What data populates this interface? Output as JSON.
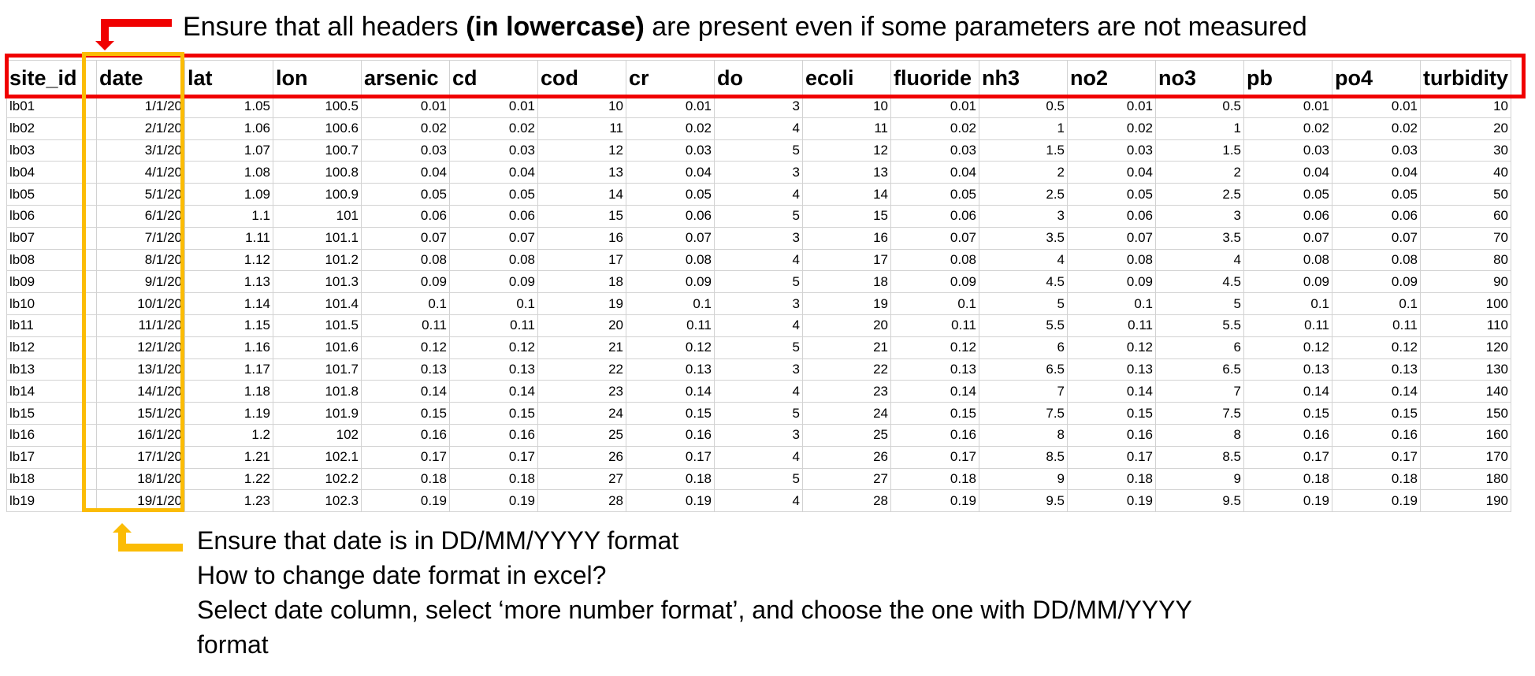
{
  "annotations": {
    "top_note_before": "Ensure that all headers ",
    "top_note_bold": "(in lowercase)",
    "top_note_after": " are present even if some parameters are not measured",
    "bottom_lines": [
      "Ensure that date is in DD/MM/YYYY format",
      "How to change date format in excel?",
      "Select date column, select ‘more number format’, and choose the one with DD/MM/YYYY",
      "format"
    ],
    "red_color": "#f00000",
    "yellow_color": "#fbbc05"
  },
  "table": {
    "headers": [
      "site_id",
      "date",
      "lat",
      "lon",
      "arsenic",
      "cd",
      "cod",
      "cr",
      "do",
      "ecoli",
      "fluoride",
      "nh3",
      "no2",
      "no3",
      "pb",
      "po4",
      "turbidity"
    ],
    "rows": [
      [
        "lb01",
        "1/1/20",
        "1.05",
        "100.5",
        "0.01",
        "0.01",
        "10",
        "0.01",
        "3",
        "10",
        "0.01",
        "0.5",
        "0.01",
        "0.5",
        "0.01",
        "0.01",
        "10"
      ],
      [
        "lb02",
        "2/1/20",
        "1.06",
        "100.6",
        "0.02",
        "0.02",
        "11",
        "0.02",
        "4",
        "11",
        "0.02",
        "1",
        "0.02",
        "1",
        "0.02",
        "0.02",
        "20"
      ],
      [
        "lb03",
        "3/1/20",
        "1.07",
        "100.7",
        "0.03",
        "0.03",
        "12",
        "0.03",
        "5",
        "12",
        "0.03",
        "1.5",
        "0.03",
        "1.5",
        "0.03",
        "0.03",
        "30"
      ],
      [
        "lb04",
        "4/1/20",
        "1.08",
        "100.8",
        "0.04",
        "0.04",
        "13",
        "0.04",
        "3",
        "13",
        "0.04",
        "2",
        "0.04",
        "2",
        "0.04",
        "0.04",
        "40"
      ],
      [
        "lb05",
        "5/1/20",
        "1.09",
        "100.9",
        "0.05",
        "0.05",
        "14",
        "0.05",
        "4",
        "14",
        "0.05",
        "2.5",
        "0.05",
        "2.5",
        "0.05",
        "0.05",
        "50"
      ],
      [
        "lb06",
        "6/1/20",
        "1.1",
        "101",
        "0.06",
        "0.06",
        "15",
        "0.06",
        "5",
        "15",
        "0.06",
        "3",
        "0.06",
        "3",
        "0.06",
        "0.06",
        "60"
      ],
      [
        "lb07",
        "7/1/20",
        "1.11",
        "101.1",
        "0.07",
        "0.07",
        "16",
        "0.07",
        "3",
        "16",
        "0.07",
        "3.5",
        "0.07",
        "3.5",
        "0.07",
        "0.07",
        "70"
      ],
      [
        "lb08",
        "8/1/20",
        "1.12",
        "101.2",
        "0.08",
        "0.08",
        "17",
        "0.08",
        "4",
        "17",
        "0.08",
        "4",
        "0.08",
        "4",
        "0.08",
        "0.08",
        "80"
      ],
      [
        "lb09",
        "9/1/20",
        "1.13",
        "101.3",
        "0.09",
        "0.09",
        "18",
        "0.09",
        "5",
        "18",
        "0.09",
        "4.5",
        "0.09",
        "4.5",
        "0.09",
        "0.09",
        "90"
      ],
      [
        "lb10",
        "10/1/20",
        "1.14",
        "101.4",
        "0.1",
        "0.1",
        "19",
        "0.1",
        "3",
        "19",
        "0.1",
        "5",
        "0.1",
        "5",
        "0.1",
        "0.1",
        "100"
      ],
      [
        "lb11",
        "11/1/20",
        "1.15",
        "101.5",
        "0.11",
        "0.11",
        "20",
        "0.11",
        "4",
        "20",
        "0.11",
        "5.5",
        "0.11",
        "5.5",
        "0.11",
        "0.11",
        "110"
      ],
      [
        "lb12",
        "12/1/20",
        "1.16",
        "101.6",
        "0.12",
        "0.12",
        "21",
        "0.12",
        "5",
        "21",
        "0.12",
        "6",
        "0.12",
        "6",
        "0.12",
        "0.12",
        "120"
      ],
      [
        "lb13",
        "13/1/20",
        "1.17",
        "101.7",
        "0.13",
        "0.13",
        "22",
        "0.13",
        "3",
        "22",
        "0.13",
        "6.5",
        "0.13",
        "6.5",
        "0.13",
        "0.13",
        "130"
      ],
      [
        "lb14",
        "14/1/20",
        "1.18",
        "101.8",
        "0.14",
        "0.14",
        "23",
        "0.14",
        "4",
        "23",
        "0.14",
        "7",
        "0.14",
        "7",
        "0.14",
        "0.14",
        "140"
      ],
      [
        "lb15",
        "15/1/20",
        "1.19",
        "101.9",
        "0.15",
        "0.15",
        "24",
        "0.15",
        "5",
        "24",
        "0.15",
        "7.5",
        "0.15",
        "7.5",
        "0.15",
        "0.15",
        "150"
      ],
      [
        "lb16",
        "16/1/20",
        "1.2",
        "102",
        "0.16",
        "0.16",
        "25",
        "0.16",
        "3",
        "25",
        "0.16",
        "8",
        "0.16",
        "8",
        "0.16",
        "0.16",
        "160"
      ],
      [
        "lb17",
        "17/1/20",
        "1.21",
        "102.1",
        "0.17",
        "0.17",
        "26",
        "0.17",
        "4",
        "26",
        "0.17",
        "8.5",
        "0.17",
        "8.5",
        "0.17",
        "0.17",
        "170"
      ],
      [
        "lb18",
        "18/1/20",
        "1.22",
        "102.2",
        "0.18",
        "0.18",
        "27",
        "0.18",
        "5",
        "27",
        "0.18",
        "9",
        "0.18",
        "9",
        "0.18",
        "0.18",
        "180"
      ],
      [
        "lb19",
        "19/1/20",
        "1.23",
        "102.3",
        "0.19",
        "0.19",
        "28",
        "0.19",
        "4",
        "28",
        "0.19",
        "9.5",
        "0.19",
        "9.5",
        "0.19",
        "0.19",
        "190"
      ]
    ]
  }
}
